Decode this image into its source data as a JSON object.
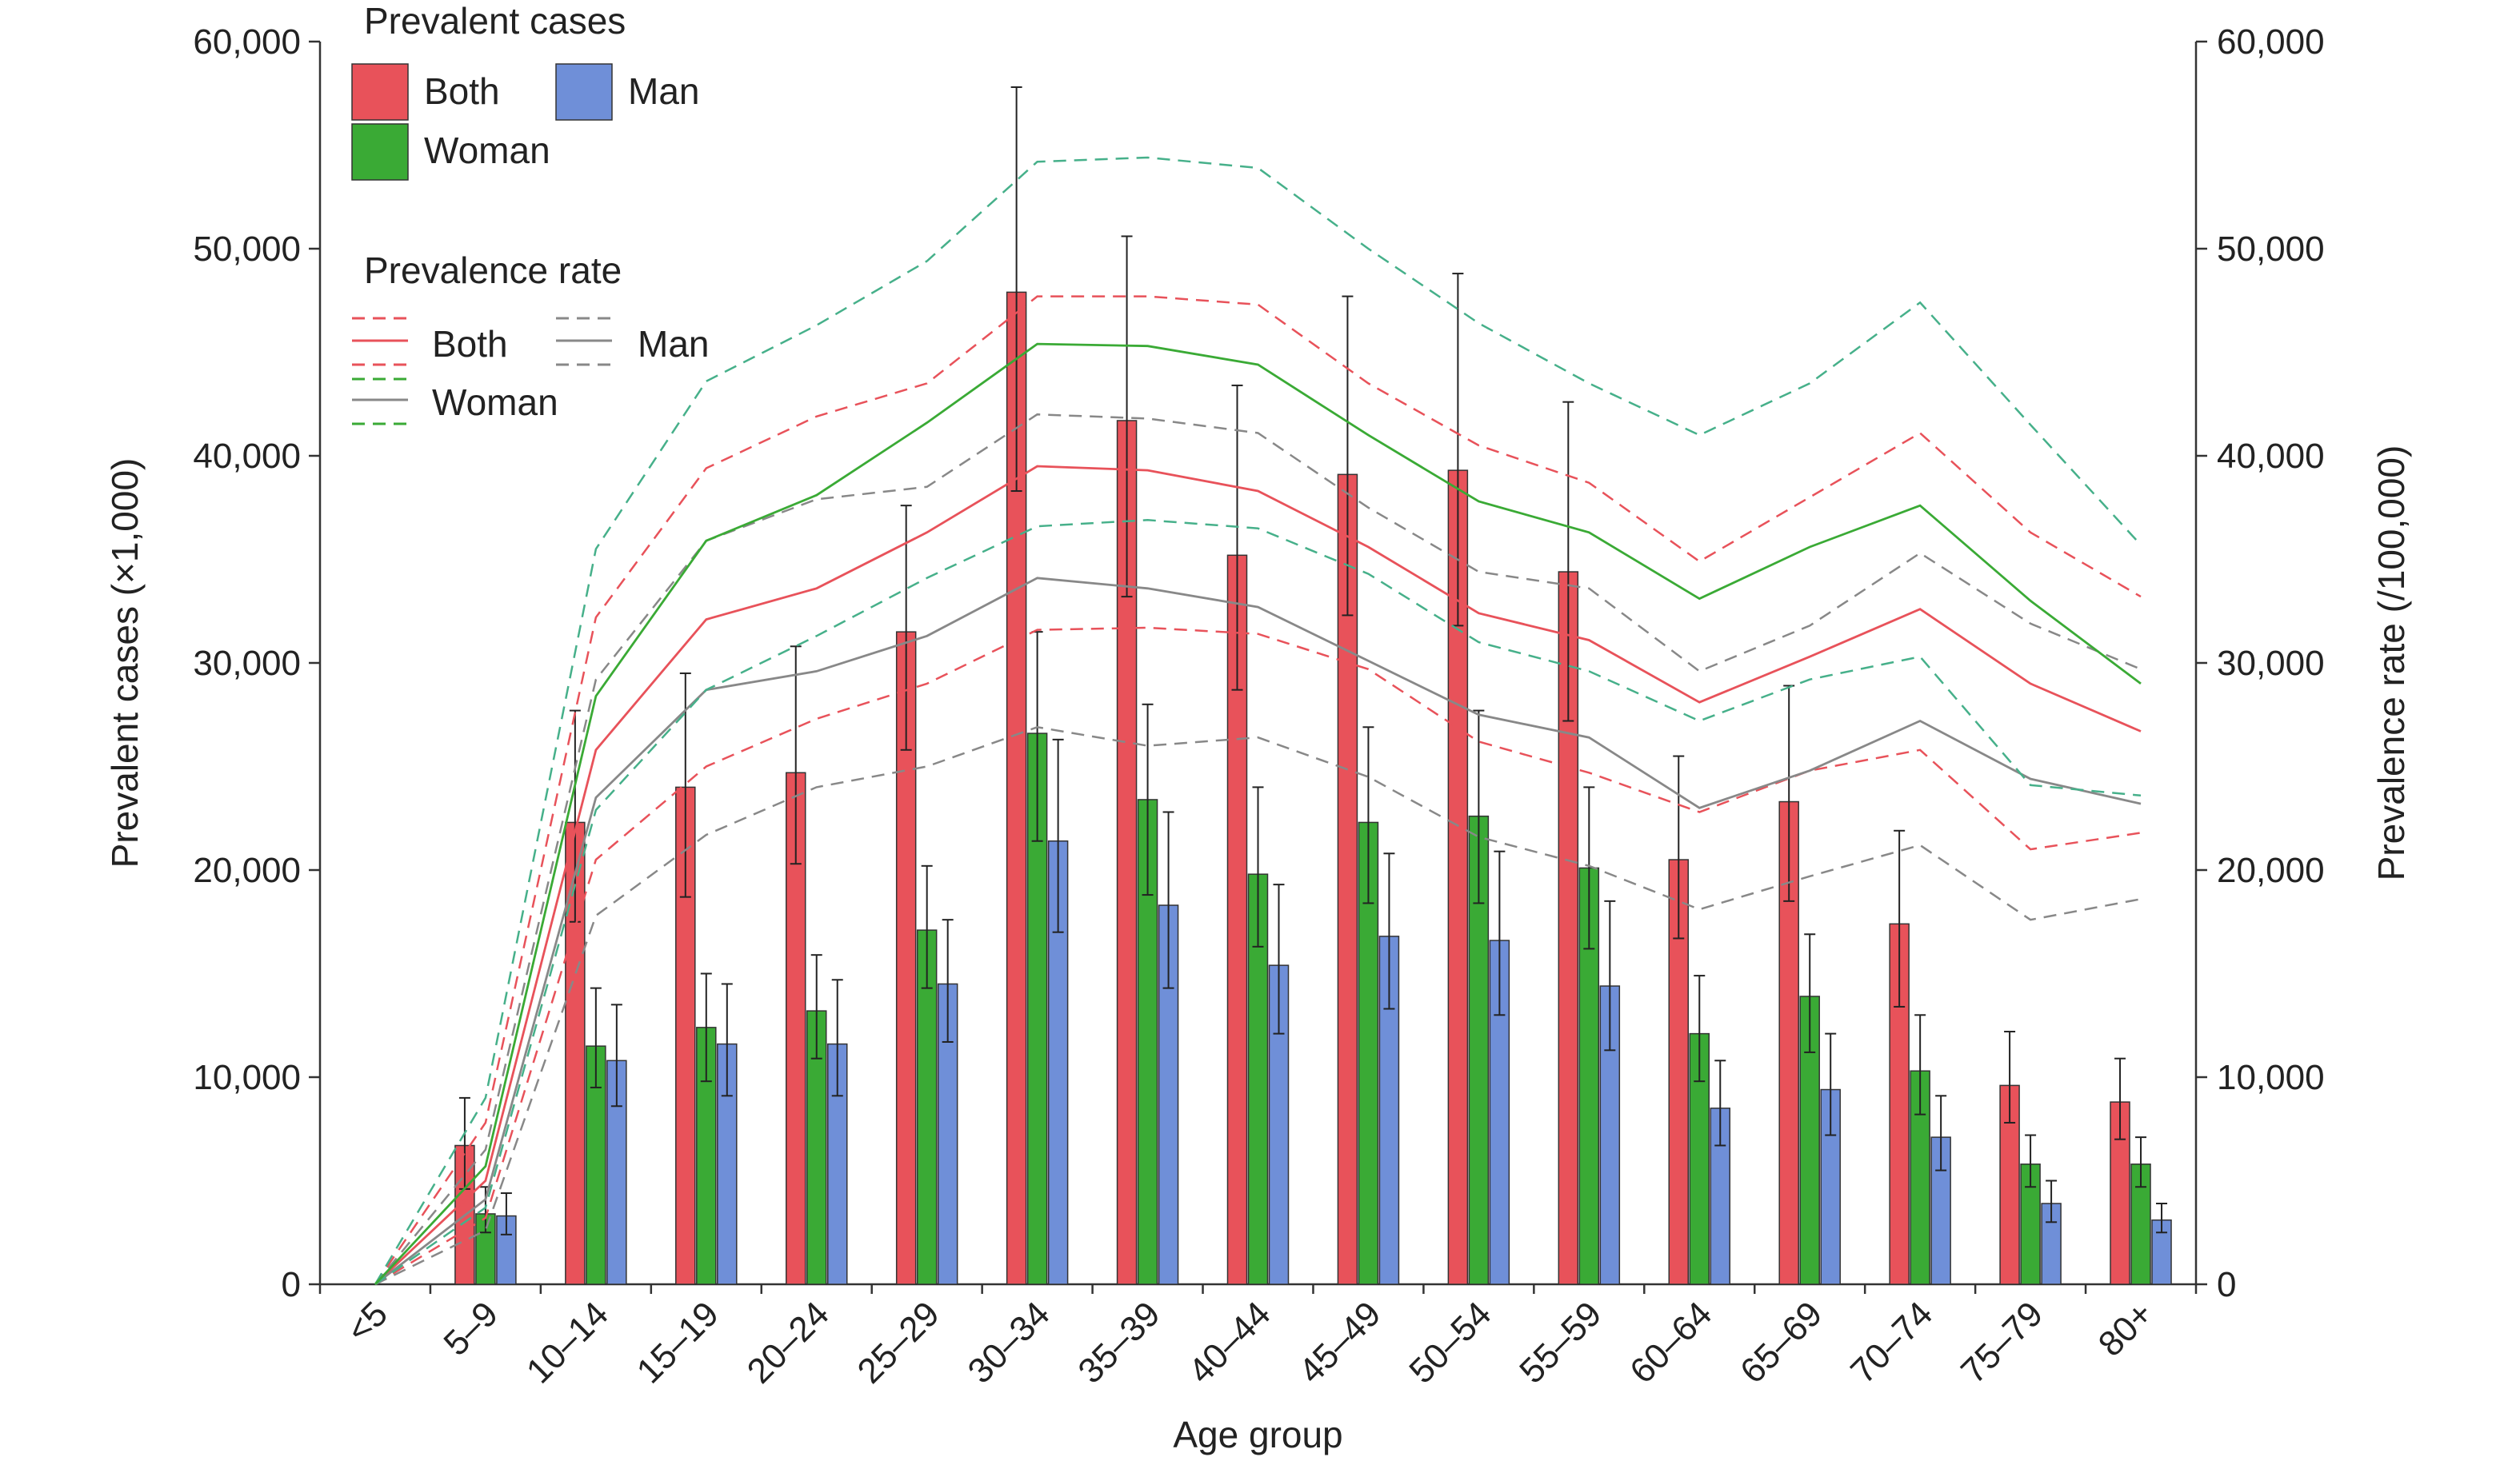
{
  "chart_data": {
    "type": "bar",
    "categories": [
      "<5",
      "5–9",
      "10–14",
      "15–19",
      "20–24",
      "25–29",
      "30–34",
      "35–39",
      "40–44",
      "45–49",
      "50–54",
      "55–59",
      "60–64",
      "65–69",
      "70–74",
      "75–79",
      "80+"
    ],
    "xlabel": "Age group",
    "ylabel": "Prevalent cases (×1,000)",
    "y2label": "Prevalence rate (/100,000)",
    "ylim": [
      0,
      60000
    ],
    "y2lim": [
      0,
      60000
    ],
    "yticks": [
      "0",
      "10,000",
      "20,000",
      "30,000",
      "40,000",
      "50,000",
      "60,000"
    ],
    "y2ticks": [
      "0",
      "10,000",
      "20,000",
      "30,000",
      "40,000",
      "50,000",
      "60,000"
    ],
    "grid": false,
    "colors": {
      "both": "#e8525a",
      "woman": "#3aaa35",
      "man": "#6f8fd8"
    },
    "legend": {
      "cases_title": "Prevalent cases",
      "cases_items": [
        "Both",
        "Man",
        "Woman"
      ],
      "rate_title": "Prevalence rate",
      "rate_items": [
        "Both",
        "Man",
        "Woman"
      ]
    },
    "bar_series": [
      {
        "name": "Both",
        "values": [
          0,
          6700,
          22300,
          24000,
          24700,
          31500,
          47900,
          41700,
          35200,
          39100,
          39300,
          34400,
          20500,
          23300,
          17400,
          9600,
          8800
        ],
        "upper": [
          0,
          9000,
          27700,
          29500,
          30800,
          37600,
          57800,
          50600,
          43400,
          47700,
          48800,
          42600,
          25500,
          28900,
          21900,
          12200,
          10900
        ],
        "lower": [
          0,
          4600,
          17500,
          18700,
          20300,
          25800,
          38300,
          33200,
          28700,
          32300,
          31800,
          27200,
          16700,
          18500,
          13400,
          7800,
          7000
        ]
      },
      {
        "name": "Woman",
        "values": [
          0,
          3400,
          11500,
          12400,
          13200,
          17100,
          26600,
          23400,
          19800,
          22300,
          22600,
          20100,
          12100,
          13900,
          10300,
          5800,
          5800
        ],
        "upper": [
          0,
          4700,
          14300,
          15000,
          15900,
          20200,
          31500,
          28000,
          24000,
          26900,
          27700,
          24000,
          14900,
          16900,
          13000,
          7200,
          7100
        ],
        "lower": [
          0,
          2500,
          9500,
          9800,
          10900,
          14300,
          21400,
          18800,
          16300,
          18400,
          18400,
          16200,
          9800,
          11200,
          8200,
          4700,
          4700
        ]
      },
      {
        "name": "Man",
        "values": [
          0,
          3300,
          10800,
          11600,
          11600,
          14500,
          21400,
          18300,
          15400,
          16800,
          16600,
          14400,
          8500,
          9400,
          7100,
          3900,
          3100
        ],
        "upper": [
          0,
          4400,
          13500,
          14500,
          14700,
          17600,
          26300,
          22800,
          19300,
          20800,
          20900,
          18500,
          10800,
          12100,
          9100,
          5000,
          3900
        ],
        "lower": [
          0,
          2400,
          8600,
          9100,
          9100,
          11700,
          17000,
          14300,
          12100,
          13300,
          13000,
          11300,
          6700,
          7200,
          5500,
          3000,
          2500
        ]
      }
    ],
    "rate_series": [
      {
        "name": "Both",
        "values": [
          0,
          5000,
          25800,
          32100,
          33600,
          36300,
          39500,
          39300,
          38300,
          35600,
          32400,
          31100,
          28100,
          30300,
          32600,
          29000,
          26700
        ],
        "upper": [
          0,
          7800,
          32200,
          39400,
          41900,
          43500,
          47700,
          47700,
          47300,
          43500,
          40500,
          38700,
          34900,
          38000,
          41100,
          36300,
          33200
        ],
        "lower": [
          0,
          3200,
          20500,
          25000,
          27300,
          29000,
          31600,
          31700,
          31400,
          29700,
          26200,
          24700,
          22800,
          24800,
          25800,
          21000,
          21800
        ]
      },
      {
        "name": "Man",
        "values": [
          0,
          4100,
          23500,
          28700,
          29600,
          31300,
          34100,
          33600,
          32700,
          30100,
          27500,
          26400,
          23000,
          24800,
          27200,
          24400,
          23200
        ],
        "upper": [
          0,
          6500,
          29200,
          35900,
          37900,
          38500,
          42000,
          41800,
          41100,
          37500,
          34400,
          33600,
          29600,
          31800,
          35300,
          31900,
          29700
        ],
        "lower": [
          0,
          2600,
          17800,
          21700,
          24000,
          25000,
          26900,
          26000,
          26400,
          24500,
          21600,
          20200,
          18100,
          19700,
          21200,
          17600,
          18600
        ]
      },
      {
        "name": "Woman",
        "values": [
          0,
          5700,
          28400,
          35900,
          38100,
          41600,
          45400,
          45300,
          44400,
          41000,
          37800,
          36300,
          33100,
          35600,
          37600,
          33000,
          29000
        ],
        "upper": [
          0,
          9000,
          35500,
          43600,
          46300,
          49400,
          54200,
          54400,
          53900,
          50000,
          46400,
          43500,
          41000,
          43500,
          47400,
          41500,
          35700
        ],
        "lower": [
          0,
          3700,
          22900,
          28700,
          31300,
          34100,
          36600,
          36900,
          36500,
          34300,
          31000,
          29600,
          27200,
          29200,
          30300,
          24100,
          23600
        ]
      }
    ]
  }
}
